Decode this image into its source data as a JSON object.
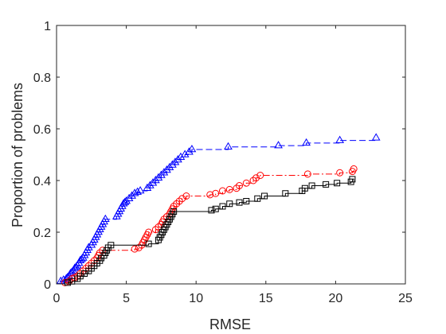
{
  "chart_data": {
    "type": "line",
    "title": "",
    "xlabel": "RMSE",
    "ylabel": "Proportion of problems",
    "xlim": [
      0,
      25
    ],
    "ylim": [
      0,
      1
    ],
    "x_ticks": [
      0,
      5,
      10,
      15,
      20,
      25
    ],
    "y_ticks": [
      0,
      0.2,
      0.4,
      0.6,
      0.8,
      1
    ],
    "x_tick_labels": [
      "0",
      "5",
      "10",
      "15",
      "20",
      "25"
    ],
    "y_tick_labels": [
      "0",
      "0.2",
      "0.4",
      "0.6",
      "0.8",
      "1"
    ],
    "grid": false,
    "series": [
      {
        "color": "#0000ff",
        "line_style": "dashed",
        "marker": "triangle",
        "points": [
          [
            0.3,
            0.01
          ],
          [
            0.5,
            0.015
          ],
          [
            0.7,
            0.02
          ],
          [
            0.8,
            0.025
          ],
          [
            0.9,
            0.03
          ],
          [
            1.0,
            0.04
          ],
          [
            1.1,
            0.045
          ],
          [
            1.2,
            0.05
          ],
          [
            1.3,
            0.06
          ],
          [
            1.4,
            0.065
          ],
          [
            1.5,
            0.07
          ],
          [
            1.6,
            0.08
          ],
          [
            1.7,
            0.09
          ],
          [
            1.8,
            0.095
          ],
          [
            1.9,
            0.1
          ],
          [
            2.0,
            0.11
          ],
          [
            2.1,
            0.12
          ],
          [
            2.2,
            0.13
          ],
          [
            2.3,
            0.14
          ],
          [
            2.5,
            0.15
          ],
          [
            2.6,
            0.16
          ],
          [
            2.7,
            0.17
          ],
          [
            2.8,
            0.18
          ],
          [
            2.9,
            0.19
          ],
          [
            3.0,
            0.2
          ],
          [
            3.1,
            0.21
          ],
          [
            3.2,
            0.22
          ],
          [
            3.3,
            0.23
          ],
          [
            3.4,
            0.24
          ],
          [
            3.5,
            0.25
          ],
          [
            4.3,
            0.26
          ],
          [
            4.4,
            0.27
          ],
          [
            4.5,
            0.28
          ],
          [
            4.6,
            0.29
          ],
          [
            4.7,
            0.3
          ],
          [
            4.8,
            0.31
          ],
          [
            4.9,
            0.315
          ],
          [
            5.0,
            0.32
          ],
          [
            5.2,
            0.33
          ],
          [
            5.4,
            0.34
          ],
          [
            5.6,
            0.35
          ],
          [
            5.8,
            0.355
          ],
          [
            6.0,
            0.36
          ],
          [
            6.5,
            0.37
          ],
          [
            6.7,
            0.38
          ],
          [
            6.9,
            0.39
          ],
          [
            7.1,
            0.4
          ],
          [
            7.3,
            0.41
          ],
          [
            7.5,
            0.42
          ],
          [
            7.7,
            0.43
          ],
          [
            7.9,
            0.44
          ],
          [
            8.1,
            0.45
          ],
          [
            8.3,
            0.46
          ],
          [
            8.5,
            0.47
          ],
          [
            8.7,
            0.48
          ],
          [
            8.9,
            0.49
          ],
          [
            9.2,
            0.5
          ],
          [
            9.5,
            0.51
          ],
          [
            9.7,
            0.52
          ],
          [
            12.3,
            0.53
          ],
          [
            15.9,
            0.535
          ],
          [
            17.9,
            0.545
          ],
          [
            20.3,
            0.555
          ],
          [
            22.9,
            0.565
          ]
        ]
      },
      {
        "color": "#ff0000",
        "line_style": "dashdot",
        "marker": "circle",
        "points": [
          [
            0.6,
            0.005
          ],
          [
            0.9,
            0.01
          ],
          [
            1.1,
            0.02
          ],
          [
            1.3,
            0.025
          ],
          [
            1.5,
            0.03
          ],
          [
            1.7,
            0.04
          ],
          [
            1.9,
            0.05
          ],
          [
            2.1,
            0.06
          ],
          [
            2.3,
            0.07
          ],
          [
            2.5,
            0.08
          ],
          [
            2.7,
            0.09
          ],
          [
            2.9,
            0.1
          ],
          [
            3.0,
            0.11
          ],
          [
            3.1,
            0.12
          ],
          [
            3.3,
            0.13
          ],
          [
            5.6,
            0.135
          ],
          [
            5.9,
            0.14
          ],
          [
            6.1,
            0.15
          ],
          [
            6.2,
            0.16
          ],
          [
            6.3,
            0.17
          ],
          [
            6.4,
            0.18
          ],
          [
            6.5,
            0.19
          ],
          [
            6.6,
            0.2
          ],
          [
            7.1,
            0.21
          ],
          [
            7.3,
            0.22
          ],
          [
            7.5,
            0.23
          ],
          [
            7.6,
            0.24
          ],
          [
            7.7,
            0.25
          ],
          [
            7.9,
            0.26
          ],
          [
            8.1,
            0.27
          ],
          [
            8.2,
            0.28
          ],
          [
            8.3,
            0.29
          ],
          [
            8.4,
            0.3
          ],
          [
            8.6,
            0.31
          ],
          [
            8.8,
            0.32
          ],
          [
            9.0,
            0.33
          ],
          [
            9.3,
            0.34
          ],
          [
            11.0,
            0.345
          ],
          [
            11.4,
            0.35
          ],
          [
            11.9,
            0.36
          ],
          [
            12.4,
            0.365
          ],
          [
            12.9,
            0.37
          ],
          [
            13.1,
            0.38
          ],
          [
            13.6,
            0.39
          ],
          [
            14.1,
            0.4
          ],
          [
            14.3,
            0.41
          ],
          [
            14.6,
            0.42
          ],
          [
            18.0,
            0.425
          ],
          [
            20.3,
            0.43
          ],
          [
            21.2,
            0.435
          ],
          [
            21.3,
            0.445
          ]
        ]
      },
      {
        "color": "#000000",
        "line_style": "solid",
        "marker": "square",
        "points": [
          [
            0.8,
            0.005
          ],
          [
            1.1,
            0.01
          ],
          [
            1.5,
            0.02
          ],
          [
            1.7,
            0.03
          ],
          [
            2.0,
            0.04
          ],
          [
            2.3,
            0.05
          ],
          [
            2.5,
            0.06
          ],
          [
            2.7,
            0.07
          ],
          [
            2.9,
            0.08
          ],
          [
            3.1,
            0.09
          ],
          [
            3.2,
            0.1
          ],
          [
            3.4,
            0.11
          ],
          [
            3.5,
            0.12
          ],
          [
            3.6,
            0.13
          ],
          [
            3.7,
            0.14
          ],
          [
            3.9,
            0.15
          ],
          [
            6.6,
            0.155
          ],
          [
            7.3,
            0.17
          ],
          [
            7.4,
            0.18
          ],
          [
            7.5,
            0.19
          ],
          [
            7.6,
            0.2
          ],
          [
            7.7,
            0.21
          ],
          [
            7.8,
            0.22
          ],
          [
            7.9,
            0.23
          ],
          [
            8.0,
            0.24
          ],
          [
            8.1,
            0.25
          ],
          [
            8.2,
            0.26
          ],
          [
            8.3,
            0.27
          ],
          [
            8.4,
            0.28
          ],
          [
            11.1,
            0.285
          ],
          [
            11.4,
            0.29
          ],
          [
            11.9,
            0.3
          ],
          [
            12.4,
            0.31
          ],
          [
            13.1,
            0.315
          ],
          [
            13.6,
            0.32
          ],
          [
            14.4,
            0.33
          ],
          [
            14.9,
            0.34
          ],
          [
            16.4,
            0.35
          ],
          [
            17.6,
            0.36
          ],
          [
            17.8,
            0.37
          ],
          [
            18.3,
            0.38
          ],
          [
            19.3,
            0.385
          ],
          [
            20.1,
            0.39
          ],
          [
            21.1,
            0.395
          ],
          [
            21.2,
            0.405
          ]
        ]
      }
    ]
  }
}
